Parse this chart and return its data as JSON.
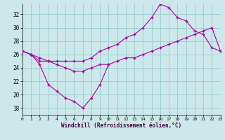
{
  "background_color": "#cce8ea",
  "grid_color": "#99cccc",
  "line_color": "#aa00aa",
  "xlabel": "Windchill (Refroidissement éolien,°C)",
  "xlim": [
    0,
    23
  ],
  "ylim": [
    17,
    33.5
  ],
  "yticks": [
    18,
    20,
    22,
    24,
    26,
    28,
    30,
    32
  ],
  "xticks": [
    0,
    1,
    2,
    3,
    4,
    5,
    6,
    7,
    8,
    9,
    10,
    11,
    12,
    13,
    14,
    15,
    16,
    17,
    18,
    19,
    20,
    21,
    22,
    23
  ],
  "line_straight_x": [
    0,
    1,
    2,
    3,
    4,
    5,
    6,
    7,
    8,
    9,
    10,
    11,
    12,
    13,
    14,
    15,
    16,
    17,
    18,
    19,
    20,
    21,
    22,
    23
  ],
  "line_straight_y": [
    26.5,
    26.0,
    25.5,
    25.0,
    24.5,
    24.0,
    23.5,
    23.5,
    24.0,
    24.5,
    24.5,
    25.0,
    25.5,
    25.5,
    26.0,
    26.5,
    27.0,
    27.5,
    28.0,
    28.5,
    29.0,
    29.5,
    30.0,
    26.5
  ],
  "line_peak_x": [
    0,
    1,
    2,
    3,
    4,
    5,
    6,
    7,
    8,
    9,
    10,
    11,
    12,
    13,
    14,
    15,
    16,
    17,
    18,
    19,
    20,
    21,
    22,
    23
  ],
  "line_peak_y": [
    26.5,
    26.0,
    25.0,
    25.0,
    25.0,
    25.0,
    25.0,
    25.0,
    25.5,
    26.5,
    27.0,
    27.5,
    28.5,
    29.0,
    30.0,
    31.5,
    33.5,
    33.0,
    31.5,
    31.0,
    29.5,
    29.0,
    27.0,
    26.5
  ],
  "line_v_x": [
    0,
    1,
    2,
    3,
    4,
    5,
    6,
    7,
    8,
    9,
    10
  ],
  "line_v_y": [
    26.5,
    26.0,
    24.5,
    21.5,
    20.5,
    19.5,
    19.0,
    18.0,
    19.5,
    21.5,
    24.5
  ]
}
